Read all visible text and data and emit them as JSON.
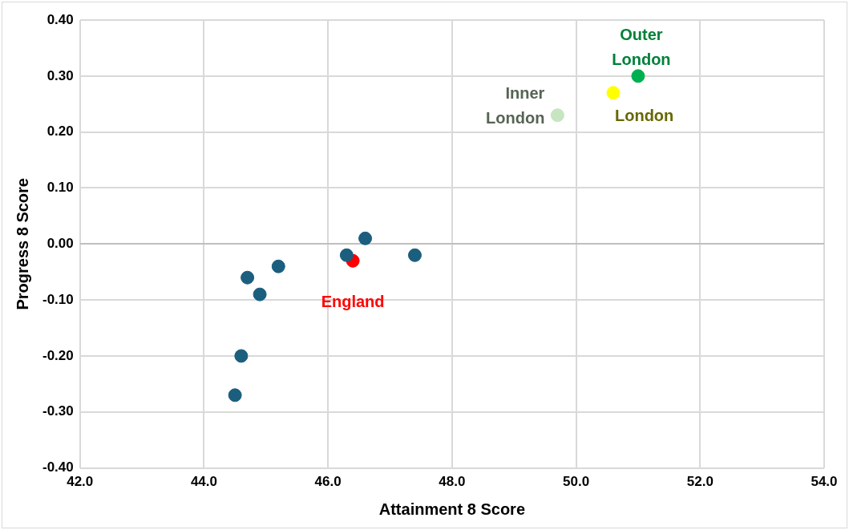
{
  "chart_data": {
    "type": "scatter",
    "xlabel": "Attainment 8 Score",
    "ylabel": "Progress 8 Score",
    "xlim": [
      42,
      54
    ],
    "xticks": [
      {
        "value": 42,
        "label": "42.0"
      },
      {
        "value": 44,
        "label": "44.0"
      },
      {
        "value": 46,
        "label": "46.0"
      },
      {
        "value": 48,
        "label": "48.0"
      },
      {
        "value": 50,
        "label": "50.0"
      },
      {
        "value": 52,
        "label": "52.0"
      },
      {
        "value": 54,
        "label": "54.0"
      }
    ],
    "ylim": [
      -0.4,
      0.4
    ],
    "yticks": [
      {
        "value": -0.4,
        "label": "-0.40"
      },
      {
        "value": -0.3,
        "label": "-0.30"
      },
      {
        "value": -0.2,
        "label": "-0.20"
      },
      {
        "value": -0.1,
        "label": "-0.10"
      },
      {
        "value": 0,
        "label": "0.00"
      },
      {
        "value": 0.1,
        "label": "0.10"
      },
      {
        "value": 0.2,
        "label": "0.20"
      },
      {
        "value": 0.3,
        "label": "0.30"
      },
      {
        "value": 0.4,
        "label": "0.40"
      }
    ],
    "grid": true,
    "legend": false,
    "marker": "circle",
    "series": [
      {
        "color": "#1b5e7e",
        "x": [
          46.6,
          46.3,
          47.4,
          45.2,
          44.7,
          44.9,
          44.6,
          44.5
        ],
        "values": [
          0.01,
          -0.02,
          -0.02,
          -0.04,
          -0.06,
          -0.09,
          -0.2,
          -0.27
        ]
      },
      {
        "name": "England",
        "color": "#ff0000",
        "x": [
          46.4
        ],
        "values": [
          -0.03
        ]
      },
      {
        "name": "Inner London",
        "color": "#c6e5c0",
        "x": [
          49.7
        ],
        "values": [
          0.23
        ]
      },
      {
        "name": "London",
        "color": "#ffff00",
        "x": [
          50.6
        ],
        "values": [
          0.27
        ]
      },
      {
        "name": "Outer London",
        "color": "#00b050",
        "x": [
          51.0
        ],
        "values": [
          0.3
        ]
      }
    ]
  }
}
